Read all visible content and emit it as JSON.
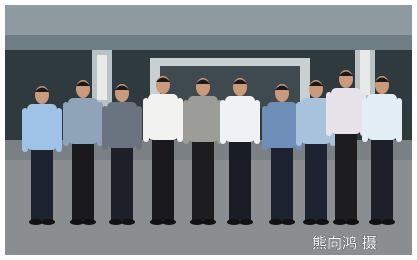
{
  "caption": "熊向鸿 摄"
}
